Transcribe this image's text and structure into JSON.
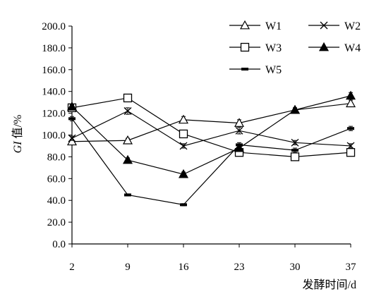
{
  "chart_data": {
    "type": "line",
    "x": [
      2,
      9,
      16,
      23,
      30,
      37
    ],
    "xlabel": "发酵时间/d",
    "ylabel_italic": "GI",
    "ylabel_rest": " 值/%",
    "ylim": [
      0,
      200
    ],
    "yticks": [
      "0.0",
      "20.0",
      "40.0",
      "60.0",
      "80.0",
      "100.0",
      "120.0",
      "140.0",
      "160.0",
      "180.0",
      "200.0"
    ],
    "xticks": [
      "2",
      "9",
      "16",
      "23",
      "30",
      "37"
    ],
    "grid": false,
    "legend_position": "top-right",
    "series": [
      {
        "name": "W1",
        "marker": "triangle-open",
        "values": [
          94,
          95,
          114,
          111,
          123,
          129
        ],
        "err": [
          2,
          2,
          3,
          3,
          2,
          3
        ]
      },
      {
        "name": "W2",
        "marker": "x",
        "values": [
          97,
          122,
          90,
          104,
          93,
          90
        ],
        "err": [
          2,
          3,
          2,
          3,
          2,
          2
        ]
      },
      {
        "name": "W3",
        "marker": "square-open",
        "values": [
          125,
          134,
          101,
          84,
          80,
          84
        ],
        "err": [
          2,
          2,
          2,
          2,
          2,
          2
        ]
      },
      {
        "name": "W4",
        "marker": "triangle-filled",
        "values": [
          126,
          77,
          64,
          88,
          123,
          136
        ],
        "err": [
          2,
          2,
          2,
          3,
          2,
          3
        ]
      },
      {
        "name": "W5",
        "marker": "dash",
        "values": [
          115,
          45,
          36,
          91,
          86,
          106
        ],
        "err": [
          2,
          1,
          1,
          2,
          2,
          2
        ]
      }
    ]
  }
}
